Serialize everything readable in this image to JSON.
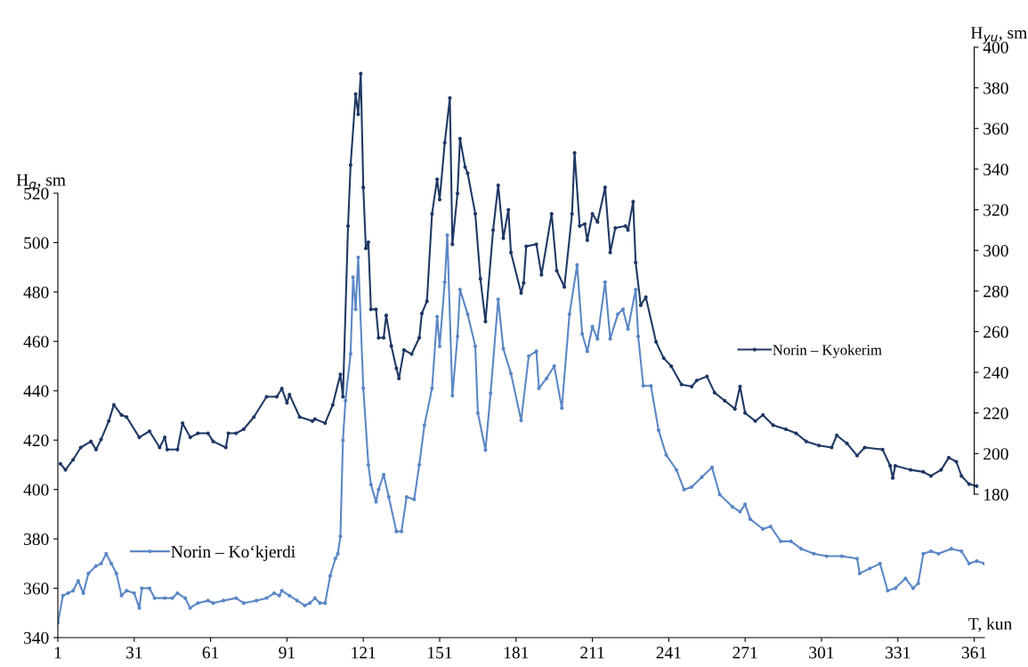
{
  "chart_data": {
    "type": "line",
    "ylabel": "H$_{q}$, sm",
    "y2label": "H$_{yu}$, sm",
    "xlabel": "T, kun",
    "xlim": [
      1,
      365
    ],
    "xticks": [
      1,
      31,
      61,
      91,
      121,
      151,
      181,
      211,
      241,
      271,
      301,
      331,
      361
    ],
    "ylim": [
      340,
      520
    ],
    "yticks": [
      340,
      360,
      380,
      400,
      420,
      440,
      460,
      480,
      500,
      520
    ],
    "y2lim": [
      180,
      400
    ],
    "y2ticks": [
      180,
      200,
      220,
      240,
      260,
      280,
      300,
      320,
      340,
      360,
      380,
      400
    ],
    "grid": false,
    "legend": "right",
    "marker": "circle",
    "line_style": "solid",
    "series": [
      {
        "name": "Norin – Ko‘kjerdi",
        "color": "#5b87c5",
        "x": [
          1,
          3,
          5,
          7,
          9,
          11,
          13,
          16,
          18,
          20,
          22,
          24,
          26,
          28,
          31,
          33,
          34,
          37,
          39,
          43,
          46,
          48,
          51,
          53,
          56,
          60,
          62,
          66,
          71,
          74,
          79,
          83,
          86,
          88,
          89,
          92,
          95,
          98,
          100,
          102,
          104,
          106,
          108,
          110,
          111,
          112,
          113,
          114,
          116,
          117,
          118,
          119,
          121,
          123,
          124,
          126,
          127,
          129,
          131,
          134,
          136,
          138,
          141,
          143,
          145,
          148,
          150,
          151,
          153,
          154,
          156,
          158,
          159,
          162,
          165,
          166,
          169,
          171,
          174,
          176,
          179,
          183,
          186,
          189,
          190,
          193,
          196,
          199,
          202,
          205,
          207,
          209,
          211,
          213,
          216,
          218,
          221,
          223,
          225,
          228,
          229,
          231,
          234,
          237,
          240,
          244,
          247,
          250,
          254,
          258,
          261,
          266,
          269,
          271,
          273,
          278,
          281,
          285,
          289,
          293,
          298,
          303,
          309,
          315,
          316,
          320,
          324,
          327,
          330,
          334,
          337,
          339,
          341,
          344,
          347,
          352,
          356,
          359,
          362,
          365
        ],
        "values": [
          346,
          357,
          358,
          359,
          363,
          358,
          366,
          369,
          370,
          374,
          370,
          366,
          357,
          359,
          358,
          352,
          360,
          360,
          356,
          356,
          356,
          358,
          356,
          352,
          354,
          355,
          354,
          355,
          356,
          354,
          355,
          356,
          358,
          357,
          359,
          357,
          355,
          353,
          354,
          356,
          354,
          354,
          365,
          372,
          374,
          381,
          420,
          436,
          455,
          486,
          473,
          494,
          441,
          410,
          402,
          395,
          400,
          406,
          397,
          383,
          383,
          397,
          396,
          410,
          426,
          441,
          470,
          458,
          484,
          503,
          438,
          462,
          481,
          471,
          458,
          431,
          416,
          439,
          477,
          457,
          447,
          428,
          454,
          456,
          441,
          445,
          450,
          433,
          471,
          491,
          463,
          456,
          466,
          461,
          484,
          461,
          471,
          473,
          465,
          481,
          462,
          442,
          442,
          424,
          414,
          408,
          400,
          401,
          405,
          409,
          398,
          393,
          391,
          394,
          388,
          384,
          385,
          379,
          379,
          376,
          374,
          373,
          373,
          372,
          366,
          368,
          370,
          359,
          360,
          364,
          360,
          362,
          374,
          375,
          374,
          376,
          375,
          370,
          371,
          370
        ]
      },
      {
        "name": "Norin – Kyokerim",
        "color": "#1f3864",
        "axis": "y2",
        "x": [
          2,
          4,
          7,
          10,
          14,
          16,
          18,
          21,
          23,
          26,
          28,
          33,
          37,
          41,
          43,
          44,
          48,
          50,
          53,
          56,
          60,
          62,
          67,
          68,
          71,
          74,
          78,
          83,
          87,
          89,
          91,
          92,
          96,
          101,
          102,
          106,
          109,
          112,
          113,
          115,
          116,
          118,
          119,
          120,
          121,
          122,
          123,
          124,
          126,
          127,
          129,
          130,
          132,
          134,
          135,
          137,
          140,
          143,
          144,
          146,
          148,
          150,
          151,
          153,
          155,
          156,
          158,
          159,
          161,
          162,
          165,
          167,
          169,
          172,
          174,
          176,
          178,
          179,
          183,
          184,
          185,
          189,
          191,
          195,
          197,
          200,
          203,
          204,
          206,
          208,
          209,
          211,
          213,
          216,
          218,
          220,
          224,
          225,
          227,
          228,
          230,
          232,
          236,
          239,
          242,
          246,
          250,
          252,
          256,
          259,
          263,
          267,
          269,
          271,
          275,
          278,
          282,
          287,
          291,
          295,
          300,
          305,
          307,
          311,
          315,
          318,
          325,
          328,
          329,
          330,
          336,
          341,
          344,
          348,
          351,
          354,
          356,
          359,
          362
        ],
        "values": [
          195,
          192,
          197,
          203,
          206,
          202,
          207,
          216,
          224,
          219,
          218,
          208,
          211,
          203,
          208,
          202,
          202,
          215,
          208,
          210,
          210,
          206,
          203,
          210,
          210,
          212,
          218,
          228,
          228,
          232,
          225,
          229,
          218,
          216,
          217,
          215,
          224,
          239,
          228,
          312,
          342,
          377,
          367,
          387,
          331,
          301,
          304,
          271,
          271,
          257,
          257,
          268,
          253,
          242,
          237,
          251,
          249,
          257,
          269,
          275,
          318,
          335,
          325,
          353,
          375,
          303,
          328,
          355,
          341,
          338,
          318,
          286,
          265,
          310,
          332,
          306,
          320,
          299,
          279,
          284,
          302,
          303,
          288,
          318,
          290,
          282,
          318,
          348,
          312,
          313,
          305,
          318,
          314,
          331,
          299,
          311,
          312,
          310,
          324,
          294,
          273,
          277,
          255,
          247,
          243,
          234,
          233,
          236,
          238,
          230,
          226,
          222,
          233,
          220,
          216,
          219,
          214,
          212,
          210,
          206,
          204,
          203,
          209,
          205,
          199,
          203,
          202,
          194,
          188,
          194,
          192,
          191,
          189,
          192,
          198,
          196,
          189,
          185,
          184
        ]
      }
    ]
  }
}
